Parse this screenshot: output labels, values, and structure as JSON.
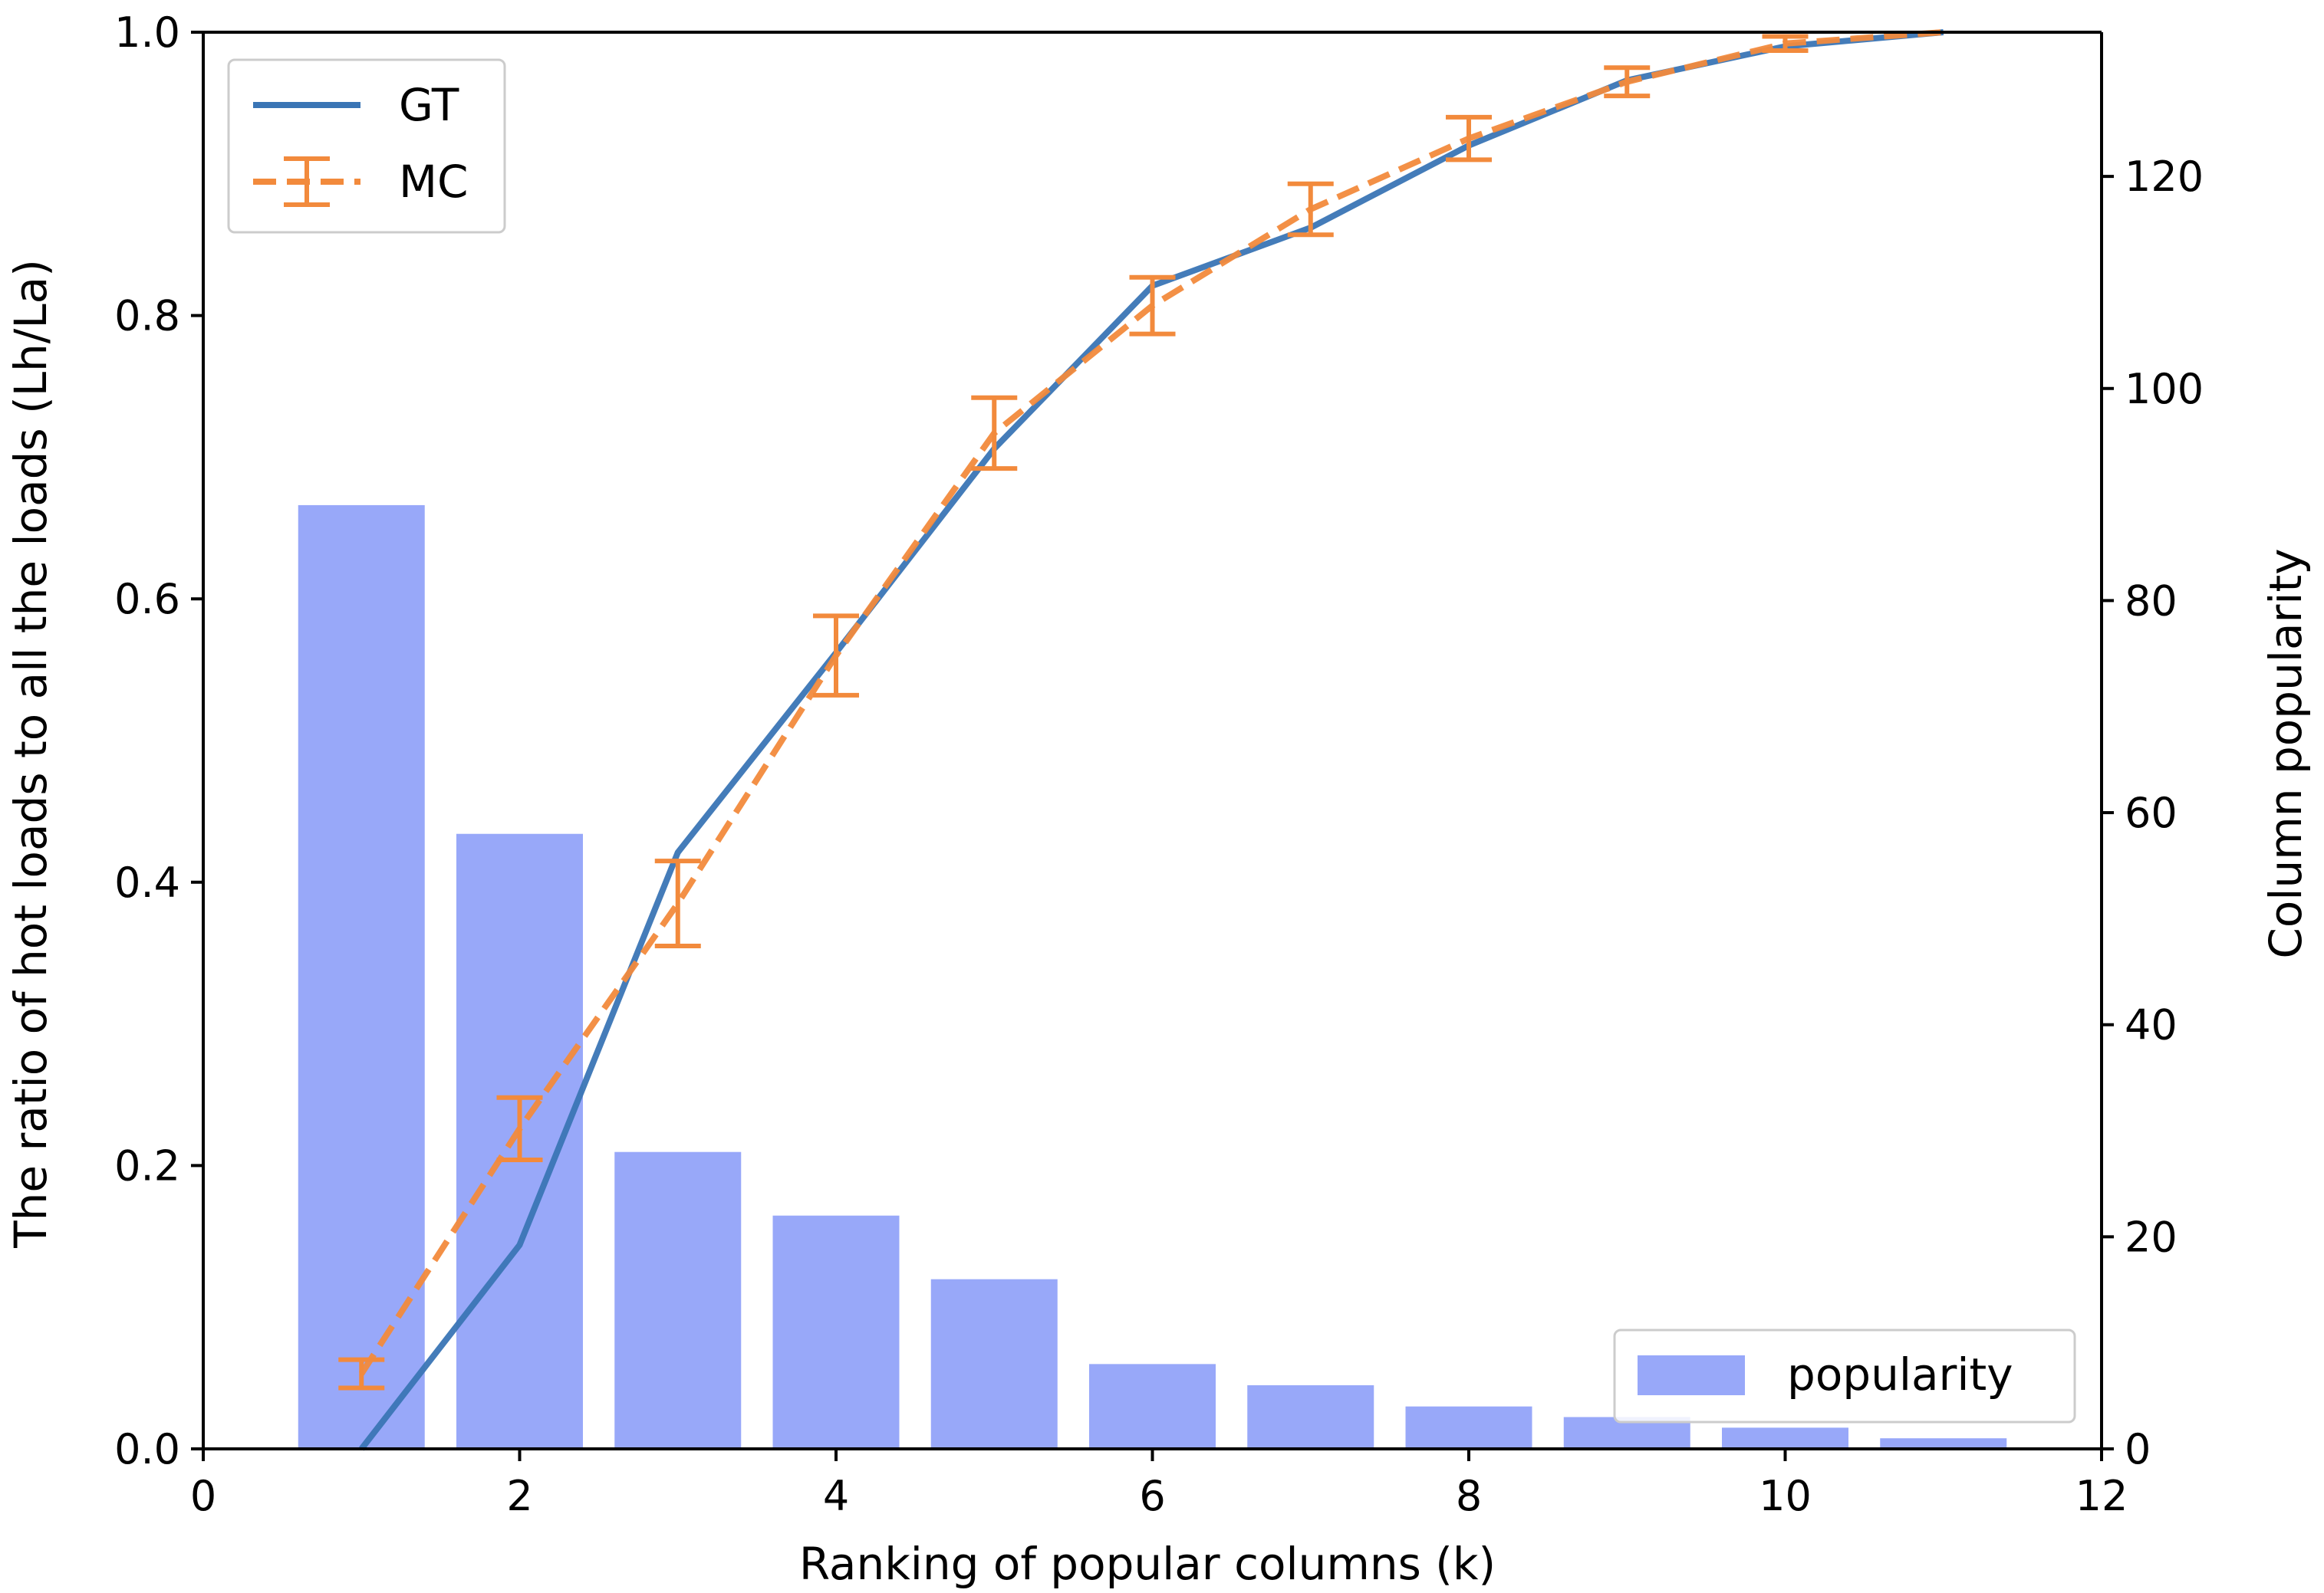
{
  "chart_data": {
    "type": "bar+line",
    "title": "",
    "xlabel": "Ranking of popular columns (k)",
    "ylabel": "The ratio of hot loads to all the loads (Lh/La)",
    "y2label": "Column popularity",
    "xlim": [
      0,
      12
    ],
    "ylim": [
      0,
      1.0
    ],
    "y2lim": [
      0,
      133.6
    ],
    "x_ticks": [
      "0",
      "2",
      "4",
      "6",
      "8",
      "10",
      "12"
    ],
    "y_ticks": [
      "0.0",
      "0.2",
      "0.4",
      "0.6",
      "0.8",
      "1.0"
    ],
    "y2_ticks": [
      "0",
      "20",
      "40",
      "60",
      "80",
      "100",
      "120"
    ],
    "grid": false,
    "bars": {
      "name": "popularity",
      "axis": "right",
      "x": [
        1,
        2,
        3,
        4,
        5,
        6,
        7,
        8,
        9,
        10,
        11
      ],
      "values": [
        89,
        58,
        28,
        22,
        16,
        8,
        6,
        4,
        3,
        2,
        1
      ],
      "color": "#7b8ff7",
      "legend": "lower-right"
    },
    "series": [
      {
        "name": "GT",
        "style": "solid",
        "color": "#3a75b5",
        "x": [
          1,
          2,
          3,
          4,
          5,
          6,
          7,
          8,
          9,
          10,
          11
        ],
        "values": [
          0.0,
          0.144,
          0.421,
          0.562,
          0.706,
          0.821,
          0.862,
          0.92,
          0.966,
          0.99,
          1.0
        ]
      },
      {
        "name": "MC",
        "style": "dashed",
        "color": "#f28a3c",
        "x": [
          1,
          2,
          3,
          4,
          5,
          6,
          7,
          8,
          9,
          10,
          11
        ],
        "values": [
          0.053,
          0.226,
          0.385,
          0.56,
          0.717,
          0.807,
          0.875,
          0.925,
          0.965,
          0.992,
          1.0
        ],
        "errors": [
          0.01,
          0.022,
          0.03,
          0.028,
          0.025,
          0.02,
          0.018,
          0.015,
          0.01,
          0.005,
          0.0
        ]
      }
    ],
    "legend": {
      "placement": "upper-left",
      "entries": [
        "GT",
        "MC"
      ]
    }
  }
}
